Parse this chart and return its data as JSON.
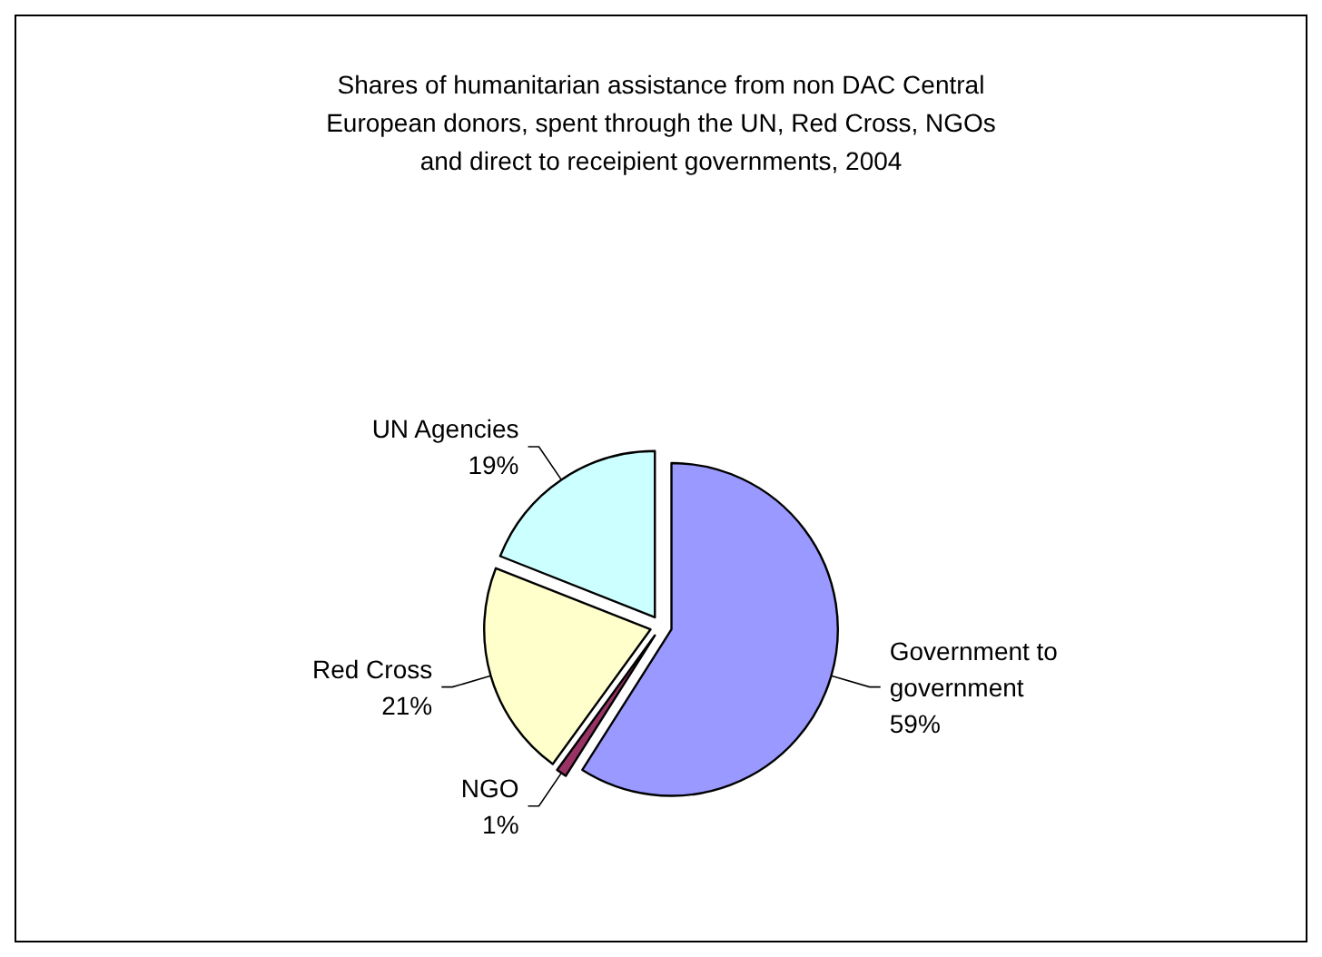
{
  "chart_data": {
    "type": "pie",
    "title": "Shares of humanitarian assistance from non DAC Central\nEuropean donors, spent through the UN, Red Cross, NGOs\nand direct to receipient governments, 2004",
    "categories": [
      "Government to\ngovernment",
      "NGO",
      "Red Cross",
      "UN Agencies"
    ],
    "values": [
      59,
      1,
      21,
      19
    ],
    "colors": [
      "#9999ff",
      "#993366",
      "#ffffcc",
      "#ccffff"
    ],
    "value_labels": [
      "59%",
      "1%",
      "21%",
      "19%"
    ],
    "legend": false
  }
}
